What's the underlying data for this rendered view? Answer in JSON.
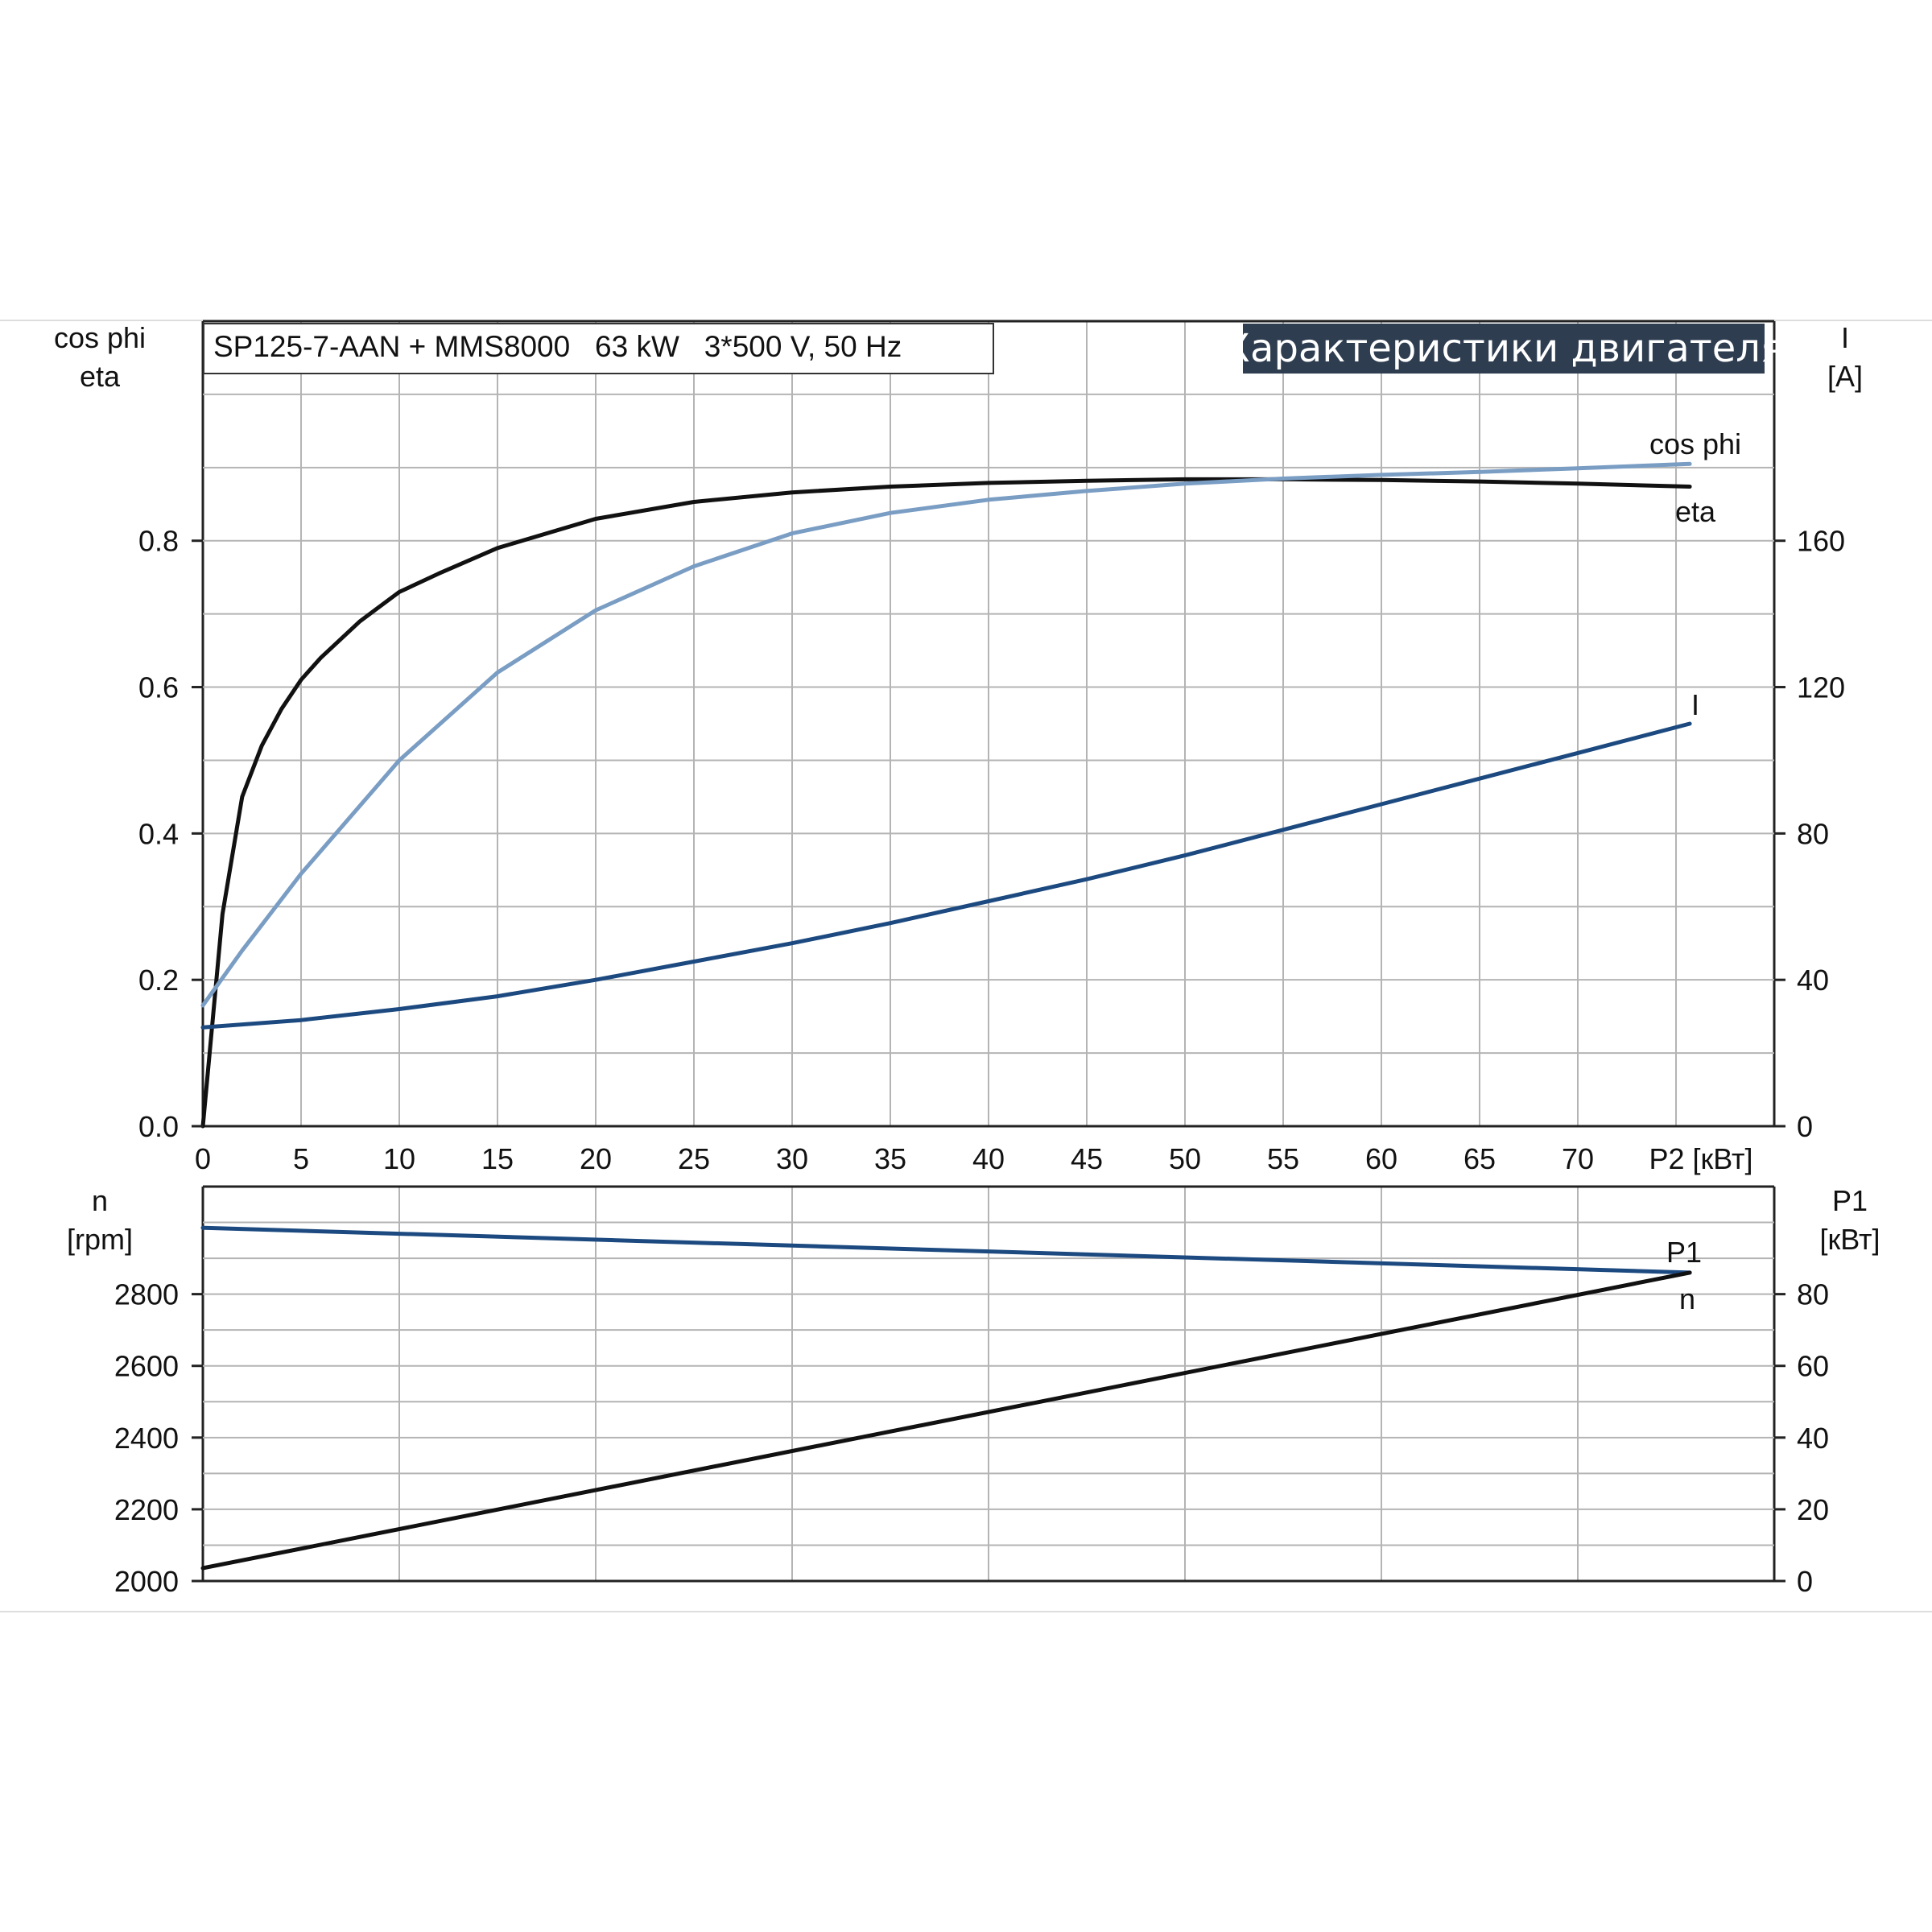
{
  "header": {
    "subtitle": "SP125-7-AAN + MMS8000   63 kW   3*500 V, 50 Hz",
    "banner": "Характеристики двигателя"
  },
  "colors": {
    "eta": "#111111",
    "cos_phi": "#7a9dc4",
    "current": "#1c4a80",
    "n": "#1c4a80",
    "p1": "#111111",
    "grid": "#b4b4b4",
    "banner_bg": "#2e3d50"
  },
  "upper": {
    "left_axis_label_1": "cos phi",
    "left_axis_label_2": "eta",
    "right_axis_label_1": "I",
    "right_axis_label_2": "[A]",
    "x_axis_label": "P2 [кВт]",
    "x_ticks": [
      "0",
      "5",
      "10",
      "15",
      "20",
      "25",
      "30",
      "35",
      "40",
      "45",
      "50",
      "55",
      "60",
      "65",
      "70"
    ],
    "left_ticks": [
      "0.0",
      "0.2",
      "0.4",
      "0.6",
      "0.8"
    ],
    "right_ticks": [
      "0",
      "40",
      "80",
      "120",
      "160"
    ],
    "label_cos_phi": "cos phi",
    "label_eta": "eta",
    "label_i": "I"
  },
  "lower": {
    "left_axis_label_1": "n",
    "left_axis_label_2": "[rpm]",
    "right_axis_label_1": "P1",
    "right_axis_label_2": "[кВт]",
    "left_ticks": [
      "2000",
      "2200",
      "2400",
      "2600",
      "2800"
    ],
    "right_ticks": [
      "0",
      "20",
      "40",
      "60",
      "80"
    ],
    "label_p1": "P1",
    "label_n": "n"
  },
  "chart_data": [
    {
      "type": "line",
      "title": "Характеристики двигателя",
      "subtitle": "SP125-7-AAN + MMS8000   63 kW   3*500 V, 50 Hz",
      "xlabel": "P2 [кВт]",
      "ylabel": "cos phi / eta",
      "ylabel_right": "I [A]",
      "xlim": [
        0,
        80
      ],
      "ylim": [
        0,
        1.1
      ],
      "ylim_right": [
        0,
        220
      ],
      "grid": true,
      "series": [
        {
          "name": "eta",
          "axis": "left",
          "x": [
            0,
            1,
            2,
            3,
            4,
            5,
            6,
            8,
            10,
            12,
            15,
            20,
            25,
            30,
            35,
            40,
            45,
            50,
            55,
            60,
            65,
            70,
            75.7
          ],
          "y": [
            0.0,
            0.29,
            0.45,
            0.52,
            0.57,
            0.61,
            0.64,
            0.69,
            0.73,
            0.755,
            0.79,
            0.83,
            0.853,
            0.866,
            0.874,
            0.879,
            0.882,
            0.884,
            0.884,
            0.883,
            0.881,
            0.878,
            0.874
          ]
        },
        {
          "name": "cos phi",
          "axis": "left",
          "x": [
            0,
            2,
            5,
            10,
            15,
            20,
            25,
            30,
            35,
            40,
            45,
            50,
            55,
            60,
            65,
            70,
            75.7
          ],
          "y": [
            0.165,
            0.24,
            0.345,
            0.5,
            0.62,
            0.705,
            0.765,
            0.81,
            0.838,
            0.856,
            0.868,
            0.878,
            0.885,
            0.89,
            0.894,
            0.899,
            0.905
          ]
        },
        {
          "name": "I",
          "axis": "right",
          "x": [
            0,
            5,
            10,
            15,
            20,
            25,
            30,
            35,
            40,
            45,
            50,
            55,
            60,
            65,
            70,
            75.7
          ],
          "y": [
            27,
            29,
            32,
            35.5,
            40,
            45,
            50,
            55.5,
            61.5,
            67.5,
            74,
            81,
            88,
            95,
            102,
            110
          ]
        }
      ]
    },
    {
      "type": "line",
      "xlabel": "P2 [кВт]",
      "ylabel": "n [rpm]",
      "ylabel_right": "P1 [кВт]",
      "xlim": [
        0,
        80
      ],
      "ylim": [
        2000,
        3100
      ],
      "ylim_right": [
        0,
        110
      ],
      "grid": true,
      "series": [
        {
          "name": "n",
          "axis": "left",
          "x": [
            0,
            75.7
          ],
          "y": [
            2985,
            2860
          ]
        },
        {
          "name": "P1",
          "axis": "right",
          "x": [
            0,
            75.7
          ],
          "y": [
            3.6,
            86
          ]
        }
      ]
    }
  ]
}
